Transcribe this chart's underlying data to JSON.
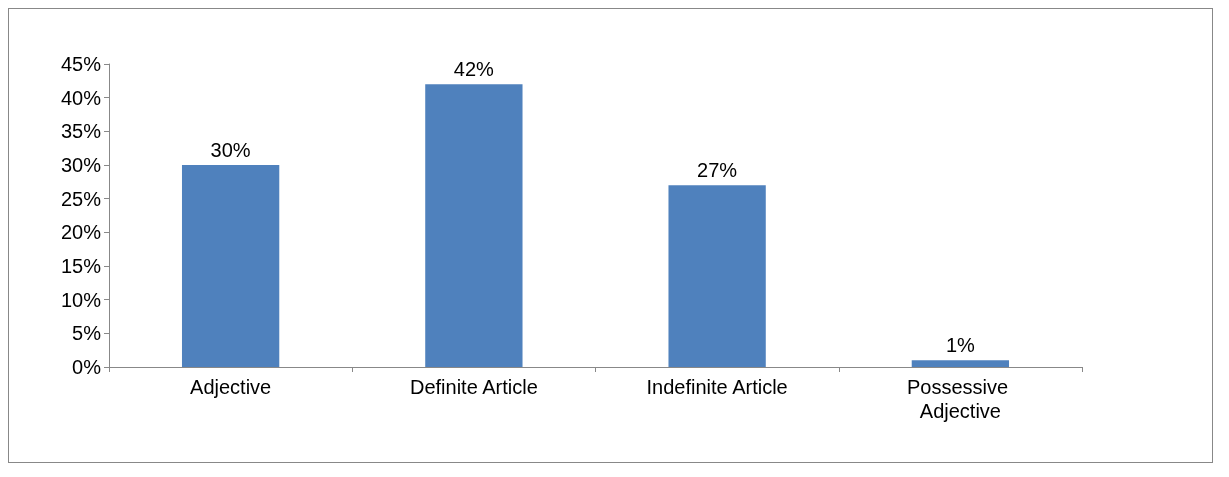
{
  "chart_data": {
    "type": "bar",
    "categories": [
      "Adjective",
      "Definite Article",
      "Indefinite Article",
      "Possessive Adjective"
    ],
    "values": [
      30,
      42,
      27,
      1
    ],
    "color": "#4f81bd",
    "value_labels": [
      "30%",
      "42%",
      "27%",
      "1%"
    ],
    "ylim": [
      0,
      45
    ],
    "yticks": [
      {
        "value": 0,
        "label": "0%"
      },
      {
        "value": 5,
        "label": "5%"
      },
      {
        "value": 10,
        "label": "10%"
      },
      {
        "value": 15,
        "label": "15%"
      },
      {
        "value": 20,
        "label": "20%"
      },
      {
        "value": 25,
        "label": "25%"
      },
      {
        "value": 30,
        "label": "30%"
      },
      {
        "value": 35,
        "label": "35%"
      },
      {
        "value": 40,
        "label": "40%"
      },
      {
        "value": 45,
        "label": "45%"
      }
    ],
    "grid": false
  }
}
